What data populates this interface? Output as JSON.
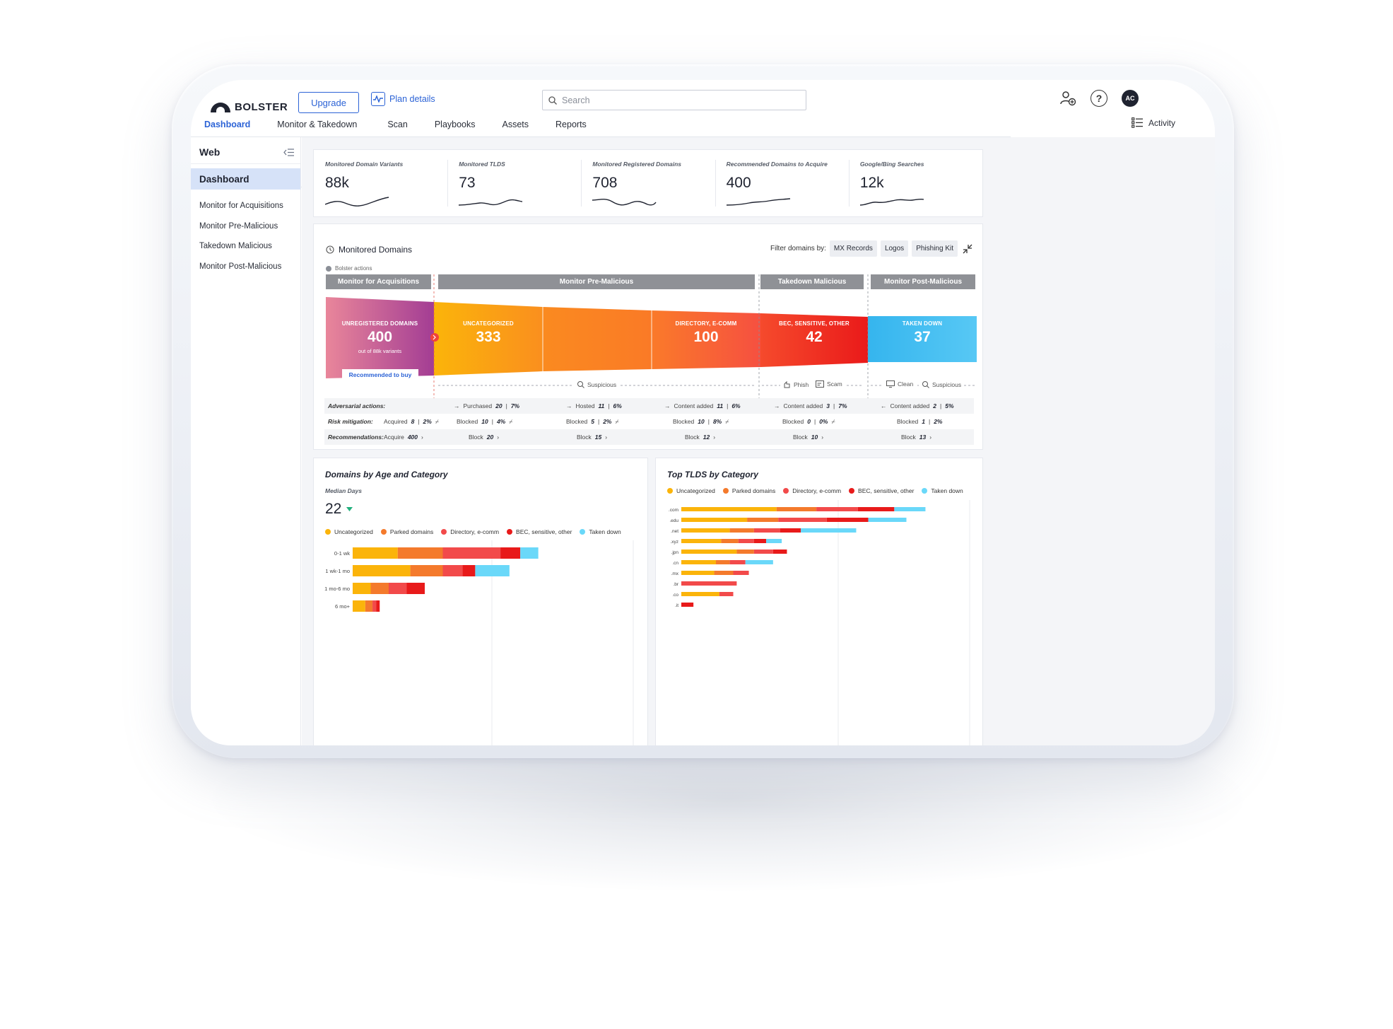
{
  "brand": {
    "name": "BOLSTER"
  },
  "header": {
    "upgrade_label": "Upgrade",
    "plan_details_label": "Plan details",
    "search_placeholder": "Search",
    "avatar_initials": "AC"
  },
  "nav": {
    "tabs": [
      {
        "label": "Dashboard",
        "active": true
      },
      {
        "label": "Monitor & Takedown",
        "active": false
      },
      {
        "label": "Scan",
        "active": false
      },
      {
        "label": "Playbooks",
        "active": false
      },
      {
        "label": "Assets",
        "active": false
      },
      {
        "label": "Reports",
        "active": false
      }
    ],
    "activity_label": "Activity"
  },
  "sidebar": {
    "section": "Web",
    "active_item": "Dashboard",
    "items": [
      "Monitor for Acquisitions",
      "Monitor Pre-Malicious",
      "Takedown Malicious",
      "Monitor Post-Malicious"
    ]
  },
  "kpis": [
    {
      "label": "Monitored Domain Variants",
      "value": "88k"
    },
    {
      "label": "Monitored TLDS",
      "value": "73"
    },
    {
      "label": "Monitored Registered Domains",
      "value": "708"
    },
    {
      "label": "Recommended Domains to Acquire",
      "value": "400"
    },
    {
      "label": "Google/Bing Searches",
      "value": "12k"
    }
  ],
  "funnel": {
    "title": "Monitored Domains",
    "filter_label": "Filter domains by:",
    "filters": [
      "MX Records",
      "Logos",
      "Phishing Kit"
    ],
    "legend_label": "Bolster actions",
    "stages": [
      "Monitor for Acquisitions",
      "Monitor Pre-Malicious",
      "Takedown Malicious",
      "Monitor Post-Malicious"
    ],
    "segments": [
      {
        "caption": "UNREGISTERED DOMAINS",
        "value": "400",
        "sub": "out of 88k variants",
        "color_from": "#e9869a",
        "color_to": "#a33d94"
      },
      {
        "caption": "UNCATEGORIZED",
        "value": "333",
        "color_from": "#fbb40a",
        "color_to": "#fa8f1e"
      },
      {
        "caption": "DIRECTORY, E-COMM",
        "value": "100",
        "color_from": "#fa7a26",
        "color_to": "#f65040"
      },
      {
        "caption": "BEC, SENSITIVE, OTHER",
        "value": "42",
        "color_from": "#f54a2c",
        "color_to": "#ec1f1f"
      },
      {
        "caption": "TAKEN DOWN",
        "value": "37",
        "color_from": "#35b5ee",
        "color_to": "#57c8f5"
      }
    ],
    "recommended_label": "Recommended to buy",
    "notes": {
      "suspicious": "Suspicious",
      "phish": "Phish",
      "scam": "Scam",
      "clean": "Clean",
      "suspicious_2": "Suspicious"
    },
    "rows": {
      "adversarial": {
        "label": "Adversarial actions:",
        "cells": [
          {
            "text": "Purchased",
            "value": "20",
            "pct": "7%"
          },
          {
            "text": "Hosted",
            "value": "11",
            "pct": "6%"
          },
          {
            "text": "Content added",
            "value": "11",
            "pct": "6%"
          },
          {
            "text": "Content added",
            "value": "3",
            "pct": "7%"
          },
          {
            "text": "Content added",
            "value": "2",
            "pct": "5%"
          }
        ]
      },
      "risk": {
        "label": "Risk mitigation:",
        "cells": [
          {
            "text": "Acquired",
            "value": "8",
            "pct": "2%"
          },
          {
            "text": "Blocked",
            "value": "10",
            "pct": "4%"
          },
          {
            "text": "Blocked",
            "value": "5",
            "pct": "2%"
          },
          {
            "text": "Blocked",
            "value": "10",
            "pct": "8%"
          },
          {
            "text": "Blocked",
            "value": "0",
            "pct": "0%"
          },
          {
            "text": "Blocked",
            "value": "1",
            "pct": "2%"
          }
        ]
      },
      "recommendations": {
        "label": "Recommendations:",
        "cells": [
          {
            "text": "Acquire",
            "value": "400"
          },
          {
            "text": "Block",
            "value": "20"
          },
          {
            "text": "Block",
            "value": "15"
          },
          {
            "text": "Block",
            "value": "12"
          },
          {
            "text": "Block",
            "value": "10"
          },
          {
            "text": "Block",
            "value": "13"
          }
        ]
      }
    }
  },
  "age_chart": {
    "title": "Domains by Age and Category",
    "median_label": "Median Days",
    "median_value": "22"
  },
  "tld_chart": {
    "title": "Top TLDS by Category"
  },
  "legend": [
    {
      "name": "Uncategorized",
      "color": "#fbb40a"
    },
    {
      "name": "Parked domains",
      "color": "#f47a2c"
    },
    {
      "name": "Directory, e-comm",
      "color": "#f24a4a"
    },
    {
      "name": "BEC, sensitive, other",
      "color": "#e81a1a"
    },
    {
      "name": "Taken down",
      "color": "#6ad8f9"
    }
  ],
  "chart_data": [
    {
      "type": "bar",
      "orientation": "horizontal-stacked",
      "title": "Domains by Age and Category",
      "categories": [
        "0-1 wk",
        "1 wk-1 mo",
        "1 mo-6 mo",
        "6 mo+"
      ],
      "series": [
        {
          "name": "Uncategorized",
          "values": [
            25,
            32,
            10,
            7
          ]
        },
        {
          "name": "Parked domains",
          "values": [
            25,
            18,
            10,
            4
          ]
        },
        {
          "name": "Directory, e-comm",
          "values": [
            32,
            11,
            10,
            2
          ]
        },
        {
          "name": "BEC, sensitive, other",
          "values": [
            11,
            7,
            10,
            2
          ]
        },
        {
          "name": "Taken down",
          "values": [
            10,
            19,
            0,
            0
          ]
        }
      ],
      "grid": true
    },
    {
      "type": "bar",
      "orientation": "horizontal-stacked",
      "title": "Top TLDS by Category",
      "categories": [
        ".com",
        ".edu",
        ".net",
        ".xyz",
        ".jpn",
        ".cn",
        ".mx",
        ".br",
        ".co",
        ".it"
      ],
      "series": [
        {
          "name": "Uncategorized",
          "values": [
            55,
            38,
            28,
            23,
            32,
            20,
            19,
            0,
            22,
            0
          ]
        },
        {
          "name": "Parked domains",
          "values": [
            23,
            18,
            14,
            10,
            10,
            8,
            11,
            0,
            0,
            0
          ]
        },
        {
          "name": "Directory, e-comm",
          "values": [
            24,
            28,
            15,
            9,
            11,
            9,
            9,
            32,
            8,
            0
          ]
        },
        {
          "name": "BEC, sensitive, other",
          "values": [
            21,
            24,
            12,
            7,
            8,
            0,
            0,
            0,
            0,
            7
          ]
        },
        {
          "name": "Taken down",
          "values": [
            18,
            22,
            32,
            9,
            0,
            16,
            0,
            0,
            0,
            0
          ]
        }
      ],
      "grid": true
    }
  ]
}
